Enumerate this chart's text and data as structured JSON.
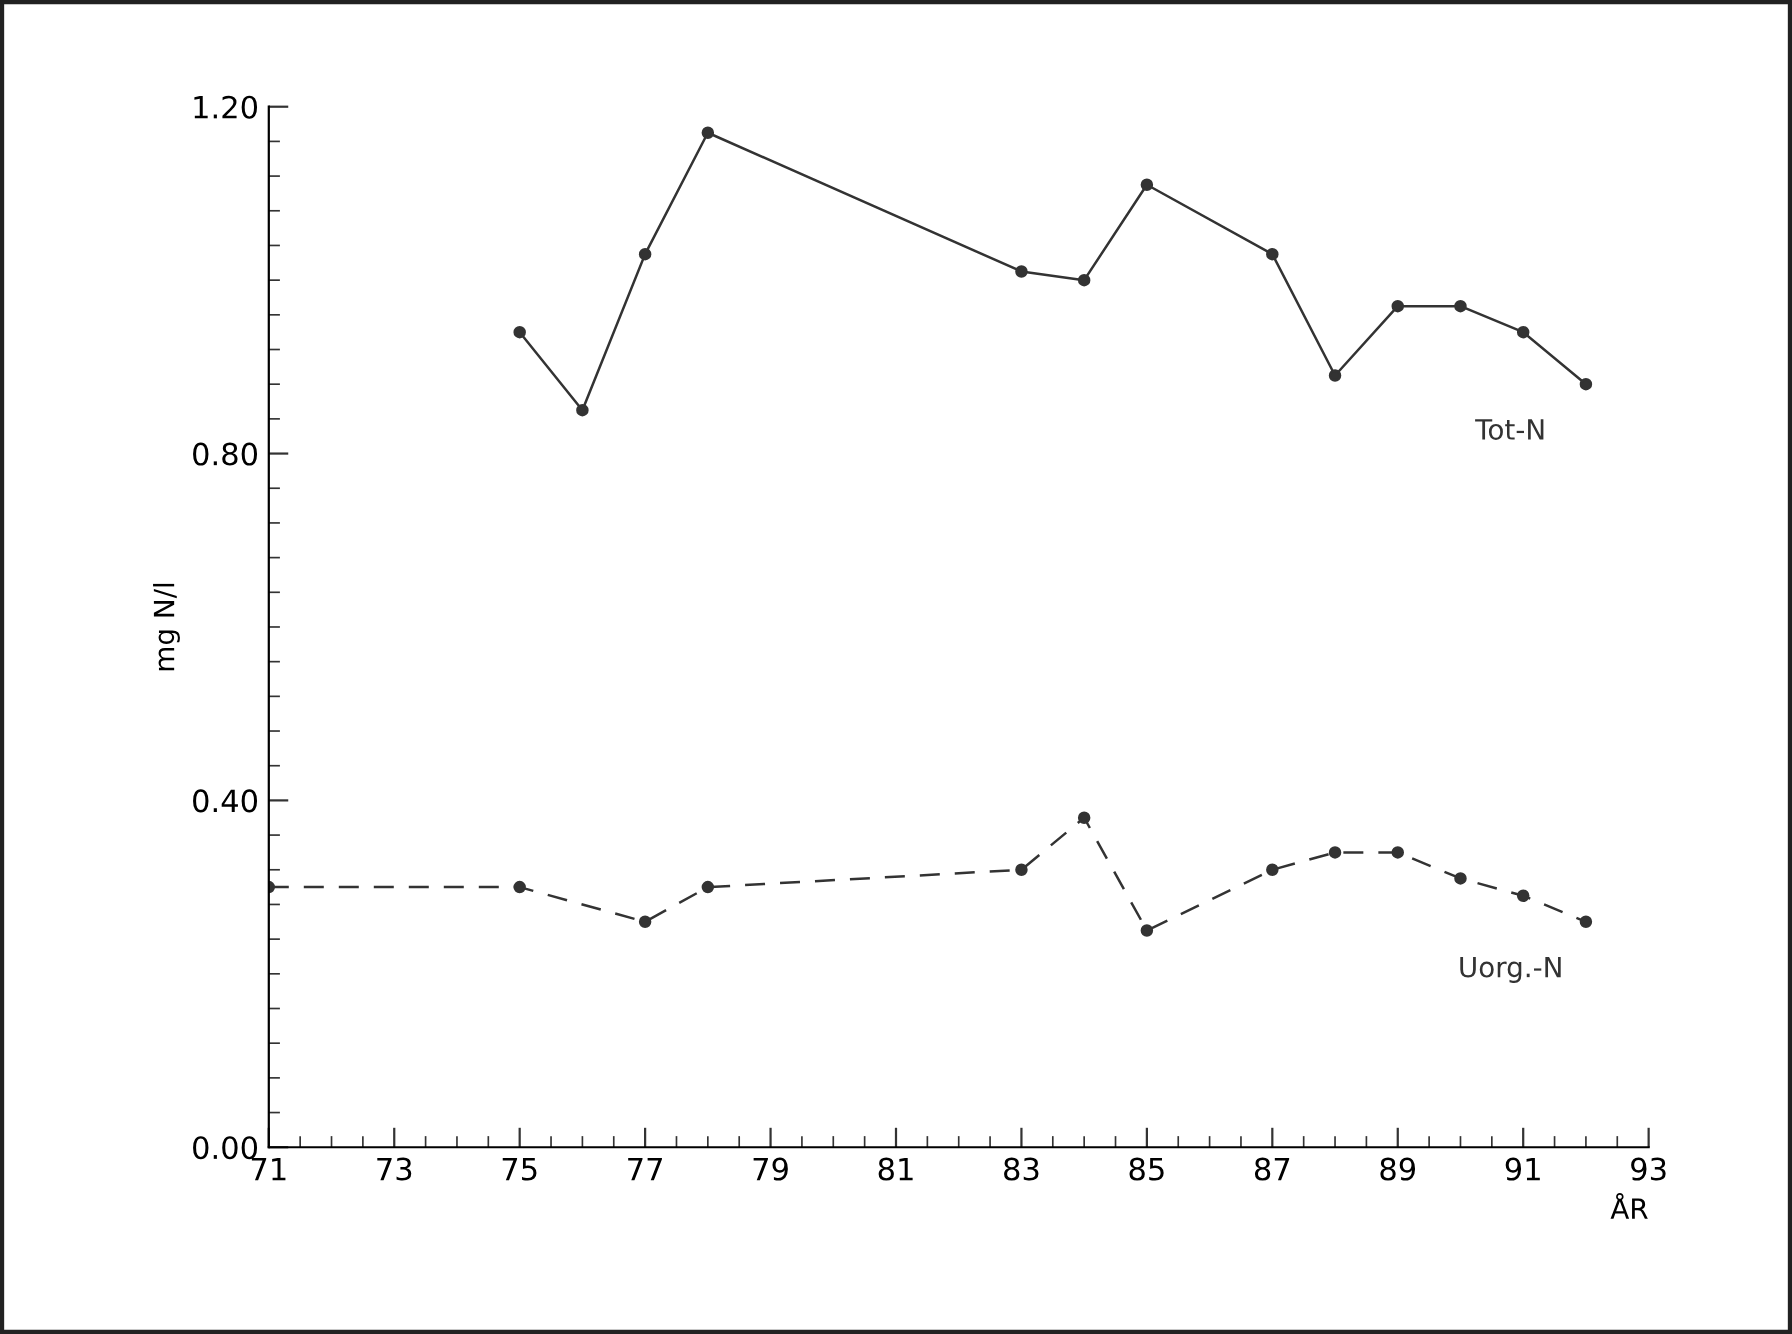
{
  "chart_data": {
    "type": "line",
    "xlabel": "ÅR",
    "ylabel": "mg N/l",
    "xlim": [
      71,
      93
    ],
    "xticks": [
      71,
      73,
      75,
      77,
      79,
      81,
      83,
      85,
      87,
      89,
      91,
      93
    ],
    "ylim": [
      0,
      1.2
    ],
    "yticks": [
      {
        "value": 0,
        "label": "0.00"
      },
      {
        "value": 0.4,
        "label": "0.40"
      },
      {
        "value": 0.8,
        "label": "0.80"
      },
      {
        "value": 1.2,
        "label": "1.20"
      }
    ],
    "grid": false,
    "legend": false,
    "marker": "circle",
    "series": [
      {
        "name": "Tot-N",
        "color": "#333333",
        "line_style": "solid",
        "x": [
          75,
          76,
          77,
          78,
          83,
          84,
          85,
          87,
          88,
          89,
          90,
          91,
          92
        ],
        "values": [
          0.94,
          0.85,
          1.03,
          1.17,
          1.01,
          1.0,
          1.11,
          1.03,
          0.89,
          0.97,
          0.97,
          0.94,
          0.88
        ]
      },
      {
        "name": "Uorg.-N",
        "color": "#333333",
        "line_style": "dashed",
        "x": [
          71,
          75,
          77,
          78,
          83,
          84,
          85,
          87,
          88,
          89,
          90,
          91,
          92
        ],
        "values": [
          0.3,
          0.3,
          0.26,
          0.3,
          0.32,
          0.38,
          0.25,
          0.32,
          0.34,
          0.34,
          0.31,
          0.29,
          0.26
        ]
      }
    ]
  }
}
